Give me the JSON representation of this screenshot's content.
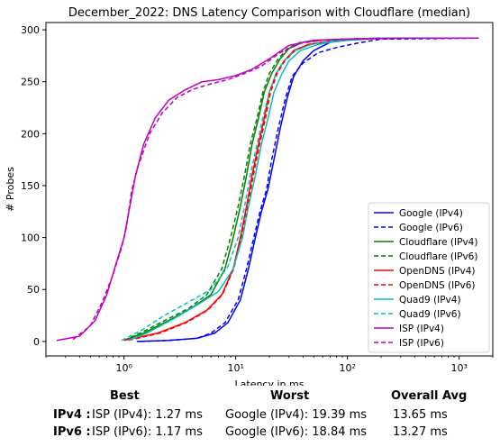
{
  "chart_data": {
    "type": "line",
    "title": "December_2022: DNS Latency Comparison with Cloudflare (median)",
    "xlabel": "Latency in ms",
    "ylabel": "# Probes",
    "xscale": "log",
    "xlim": [
      0.2,
      2000
    ],
    "ylim": [
      -14,
      307
    ],
    "xticks": [
      1,
      10,
      100,
      1000
    ],
    "xtick_labels": [
      "10⁰",
      "10¹",
      "10²",
      "10³"
    ],
    "yticks": [
      0,
      50,
      100,
      150,
      200,
      250,
      300
    ],
    "ytick_labels": [
      "0",
      "50",
      "100",
      "150",
      "200",
      "250",
      "300"
    ],
    "grid": false,
    "legend_position": "lower right",
    "series": [
      {
        "name": "Google (IPv4)",
        "color": "#0000ff",
        "dash": "solid",
        "x": [
          1.3,
          2.5,
          4.5,
          6.5,
          8.5,
          11,
          13,
          15,
          17,
          19.39,
          22,
          25,
          29,
          33,
          40,
          50,
          70,
          100,
          200,
          1500
        ],
        "y": [
          0,
          1,
          3,
          8,
          18,
          40,
          70,
          100,
          125,
          146,
          175,
          205,
          235,
          255,
          270,
          280,
          288,
          290,
          292,
          292
        ]
      },
      {
        "name": "Google (IPv6)",
        "color": "#0000ff",
        "dash": "dashed",
        "x": [
          1.4,
          2.5,
          4.5,
          6.0,
          8.0,
          10.5,
          12.5,
          14.5,
          16.5,
          18.84,
          21,
          24,
          28,
          32,
          40,
          55,
          80,
          120,
          200,
          1500
        ],
        "y": [
          0,
          1,
          3,
          8,
          18,
          40,
          70,
          100,
          125,
          146,
          175,
          205,
          235,
          255,
          268,
          278,
          283,
          287,
          291,
          292
        ]
      },
      {
        "name": "Cloudflare (IPv4)",
        "color": "#008000",
        "dash": "solid",
        "x": [
          1.0,
          1.5,
          2.5,
          4.0,
          6.0,
          8.0,
          9.5,
          11,
          12.5,
          14,
          16,
          18,
          21,
          25,
          30,
          40,
          60,
          100,
          200,
          1500
        ],
        "y": [
          1,
          8,
          20,
          32,
          45,
          70,
          100,
          130,
          160,
          190,
          215,
          240,
          258,
          272,
          282,
          288,
          290,
          291,
          292,
          292
        ]
      },
      {
        "name": "Cloudflare (IPv6)",
        "color": "#008000",
        "dash": "dashed",
        "x": [
          1.0,
          1.4,
          2.3,
          3.8,
          5.5,
          7.5,
          9.0,
          10.5,
          12,
          13.5,
          15.5,
          17.5,
          20,
          24,
          29,
          38,
          55,
          90,
          200,
          1500
        ],
        "y": [
          1,
          8,
          20,
          32,
          45,
          70,
          100,
          130,
          160,
          190,
          215,
          240,
          258,
          272,
          282,
          288,
          290,
          291,
          292,
          292
        ]
      },
      {
        "name": "OpenDNS (IPv4)",
        "color": "#ff0000",
        "dash": "solid",
        "x": [
          1.0,
          2.0,
          3.5,
          5.5,
          7.5,
          9.5,
          11,
          12.5,
          14,
          16,
          18,
          20,
          23,
          27,
          33,
          45,
          70,
          120,
          250,
          1500
        ],
        "y": [
          1,
          8,
          18,
          30,
          45,
          70,
          100,
          130,
          160,
          190,
          215,
          240,
          258,
          270,
          280,
          286,
          289,
          291,
          292,
          292
        ]
      },
      {
        "name": "OpenDNS (IPv6)",
        "color": "#ff0000",
        "dash": "dashed",
        "x": [
          1.1,
          2.1,
          3.6,
          5.6,
          7.6,
          9.6,
          11.2,
          12.8,
          14.4,
          16.4,
          18.5,
          20.5,
          23.5,
          27.5,
          34,
          46,
          72,
          120,
          250,
          1500
        ],
        "y": [
          1,
          8,
          18,
          30,
          45,
          70,
          100,
          130,
          160,
          190,
          215,
          240,
          258,
          270,
          280,
          286,
          289,
          291,
          292,
          292
        ]
      },
      {
        "name": "Quad9 (IPv4)",
        "color": "#00bfbf",
        "dash": "solid",
        "x": [
          1.1,
          1.6,
          2.8,
          4.5,
          7.0,
          9.5,
          11.5,
          13,
          15,
          17,
          19.5,
          22,
          26,
          30,
          38,
          55,
          80,
          130,
          250,
          1500
        ],
        "y": [
          1,
          8,
          22,
          35,
          48,
          70,
          100,
          130,
          160,
          190,
          215,
          240,
          258,
          270,
          280,
          286,
          289,
          291,
          292,
          292
        ]
      },
      {
        "name": "Quad9 (IPv6)",
        "color": "#00bfbf",
        "dash": "dashed",
        "x": [
          0.95,
          1.4,
          2.3,
          3.8,
          6.0,
          8.5,
          10.5,
          12,
          13.5,
          15.5,
          17.5,
          20,
          23,
          27,
          34,
          48,
          70,
          110,
          200,
          1500
        ],
        "y": [
          1,
          10,
          25,
          38,
          50,
          72,
          100,
          130,
          160,
          190,
          215,
          240,
          258,
          270,
          280,
          286,
          289,
          291,
          292,
          292
        ]
      },
      {
        "name": "ISP (IPv4)",
        "color": "#bf00bf",
        "dash": "solid",
        "x": [
          0.25,
          0.4,
          0.55,
          0.7,
          0.85,
          1.0,
          1.15,
          1.27,
          1.5,
          1.9,
          2.5,
          3.5,
          5.0,
          7.0,
          10,
          14,
          20,
          30,
          50,
          100,
          300,
          1500
        ],
        "y": [
          1,
          5,
          20,
          45,
          75,
          100,
          135,
          160,
          190,
          215,
          232,
          242,
          250,
          252,
          256,
          262,
          272,
          285,
          290,
          291,
          292,
          292
        ]
      },
      {
        "name": "ISP (IPv6)",
        "color": "#bf00bf",
        "dash": "dashed",
        "x": [
          0.35,
          0.5,
          0.65,
          0.8,
          0.95,
          1.05,
          1.17,
          1.35,
          1.7,
          2.2,
          3.0,
          4.2,
          6.0,
          8.5,
          12,
          17,
          25,
          38,
          60,
          120,
          300,
          1500
        ],
        "y": [
          2,
          15,
          40,
          65,
          90,
          110,
          145,
          170,
          200,
          220,
          235,
          243,
          248,
          252,
          258,
          265,
          278,
          287,
          290,
          291,
          292,
          292
        ]
      }
    ]
  },
  "stats": {
    "headers": {
      "best": "Best",
      "worst": "Worst",
      "avg": "Overall Avg"
    },
    "rows": [
      {
        "label": "IPv4 :",
        "best": "ISP (IPv4): 1.27 ms",
        "worst": "Google (IPv4): 19.39 ms",
        "avg": "13.65 ms"
      },
      {
        "label": "IPv6 :",
        "best": "ISP (IPv6): 1.17 ms",
        "worst": "Google (IPv6): 18.84 ms",
        "avg": "13.27 ms"
      }
    ]
  }
}
